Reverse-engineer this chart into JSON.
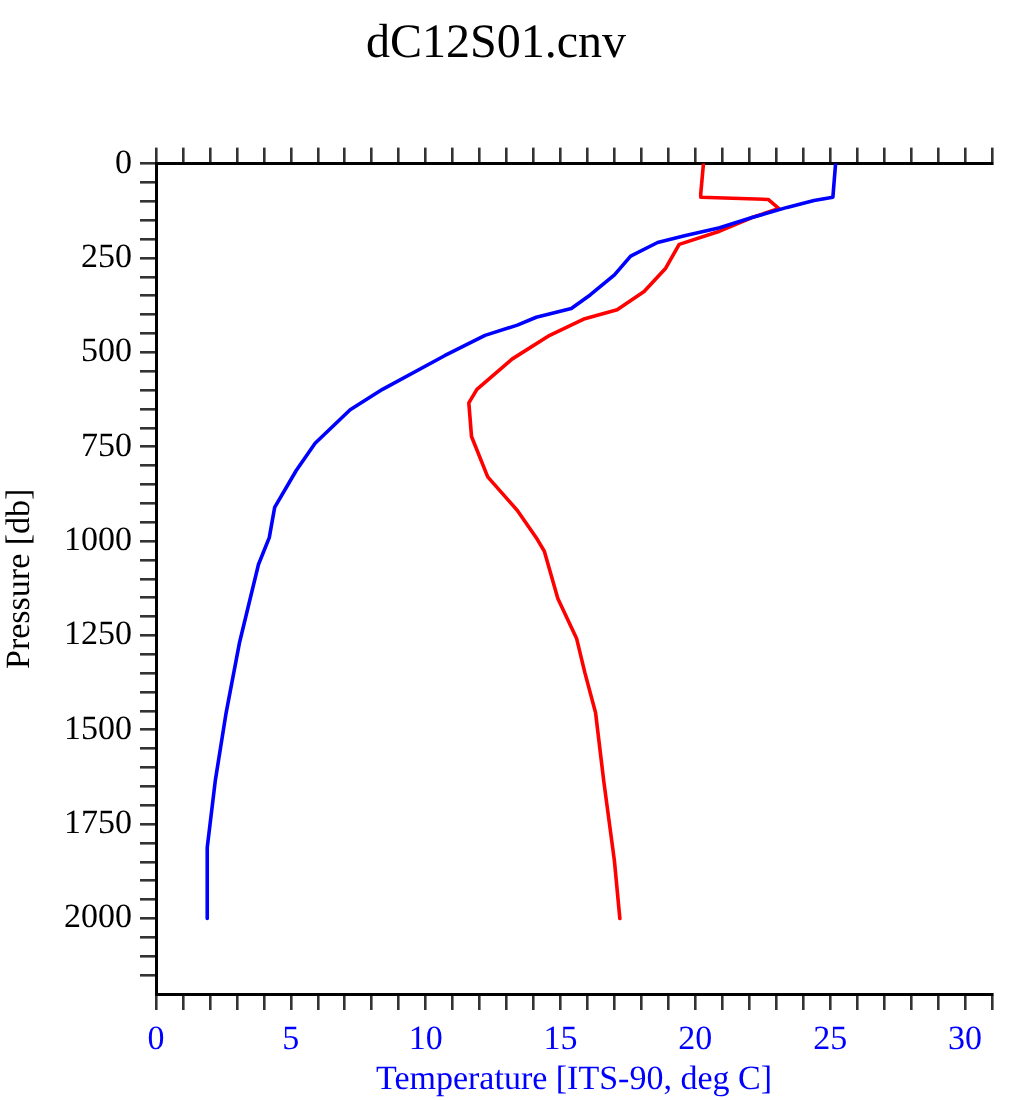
{
  "chart_data": {
    "type": "line",
    "title": "dC12S01.cnv",
    "xlabel": "Temperature [ITS-90, deg C]",
    "ylabel": "Pressure [db]",
    "xlim": [
      0,
      31
    ],
    "ylim": [
      2200,
      0
    ],
    "xticks": [
      0,
      {
        "value": 1,
        "label": null
      },
      {
        "value": 2,
        "label": null
      },
      {
        "value": 3,
        "label": null
      },
      {
        "value": 4,
        "label": null
      },
      5,
      {
        "value": 6,
        "label": null
      },
      {
        "value": 7,
        "label": null
      },
      {
        "value": 8,
        "label": null
      },
      {
        "value": 9,
        "label": null
      },
      10,
      {
        "value": 11,
        "label": null
      },
      {
        "value": 12,
        "label": null
      },
      {
        "value": 13,
        "label": null
      },
      {
        "value": 14,
        "label": null
      },
      15,
      {
        "value": 16,
        "label": null
      },
      {
        "value": 17,
        "label": null
      },
      {
        "value": 18,
        "label": null
      },
      {
        "value": 19,
        "label": null
      },
      20,
      {
        "value": 21,
        "label": null
      },
      {
        "value": 22,
        "label": null
      },
      {
        "value": 23,
        "label": null
      },
      {
        "value": 24,
        "label": null
      },
      25,
      {
        "value": 26,
        "label": null
      },
      {
        "value": 27,
        "label": null
      },
      {
        "value": 28,
        "label": null
      },
      {
        "value": 29,
        "label": null
      },
      30,
      {
        "value": 31,
        "label": null
      }
    ],
    "yticks": [
      0,
      {
        "value": 50,
        "label": null
      },
      {
        "value": 100,
        "label": null
      },
      {
        "value": 150,
        "label": null
      },
      {
        "value": 200,
        "label": null
      },
      250,
      {
        "value": 300,
        "label": null
      },
      {
        "value": 350,
        "label": null
      },
      {
        "value": 400,
        "label": null
      },
      {
        "value": 450,
        "label": null
      },
      500,
      {
        "value": 550,
        "label": null
      },
      {
        "value": 600,
        "label": null
      },
      {
        "value": 650,
        "label": null
      },
      {
        "value": 700,
        "label": null
      },
      750,
      {
        "value": 800,
        "label": null
      },
      {
        "value": 850,
        "label": null
      },
      {
        "value": 900,
        "label": null
      },
      {
        "value": 950,
        "label": null
      },
      1000,
      {
        "value": 1050,
        "label": null
      },
      {
        "value": 1100,
        "label": null
      },
      {
        "value": 1150,
        "label": null
      },
      {
        "value": 1200,
        "label": null
      },
      1250,
      {
        "value": 1300,
        "label": null
      },
      {
        "value": 1350,
        "label": null
      },
      {
        "value": 1400,
        "label": null
      },
      {
        "value": 1450,
        "label": null
      },
      1500,
      {
        "value": 1550,
        "label": null
      },
      {
        "value": 1600,
        "label": null
      },
      {
        "value": 1650,
        "label": null
      },
      {
        "value": 1700,
        "label": null
      },
      1750,
      {
        "value": 1800,
        "label": null
      },
      {
        "value": 1850,
        "label": null
      },
      {
        "value": 1900,
        "label": null
      },
      {
        "value": 1950,
        "label": null
      },
      2000,
      {
        "value": 2050,
        "label": null
      },
      {
        "value": 2100,
        "label": null
      },
      {
        "value": 2150,
        "label": null
      }
    ],
    "grid": false,
    "legend": false,
    "marker": "none",
    "line_style": "solid",
    "series": [
      {
        "color": "#0000ff",
        "x": [
          25.2,
          25.1,
          24.4,
          23.4,
          22.1,
          20.9,
          19.6,
          18.6,
          17.6,
          17.0,
          16.1,
          15.4,
          14.1,
          13.4,
          12.2,
          10.7,
          8.4,
          7.2,
          5.9,
          5.2,
          4.4,
          4.2,
          3.8,
          3.1,
          2.6,
          2.2,
          1.9,
          1.9
        ],
        "values": [
          0,
          89,
          98,
          116,
          143,
          170,
          191,
          209,
          245,
          295,
          348,
          384,
          407,
          428,
          455,
          509,
          598,
          652,
          741,
          813,
          911,
          991,
          1062,
          1268,
          1455,
          1634,
          1812,
          2000
        ]
      },
      {
        "color": "#ff0000",
        "x": [
          20.3,
          20.2,
          20.2,
          22.7,
          23.1,
          22.1,
          20.9,
          19.4,
          18.9,
          18.1,
          17.1,
          15.9,
          14.6,
          13.2,
          11.9,
          11.6,
          11.7,
          12.3,
          13.4,
          14.1,
          14.4,
          14.9,
          15.6,
          15.9,
          16.3,
          16.6,
          17.0,
          17.2
        ],
        "values": [
          0,
          80,
          89,
          95,
          119,
          143,
          179,
          214,
          277,
          339,
          387,
          411,
          455,
          518,
          598,
          634,
          723,
          830,
          919,
          991,
          1027,
          1152,
          1259,
          1348,
          1455,
          1634,
          1848,
          2000
        ]
      }
    ]
  }
}
